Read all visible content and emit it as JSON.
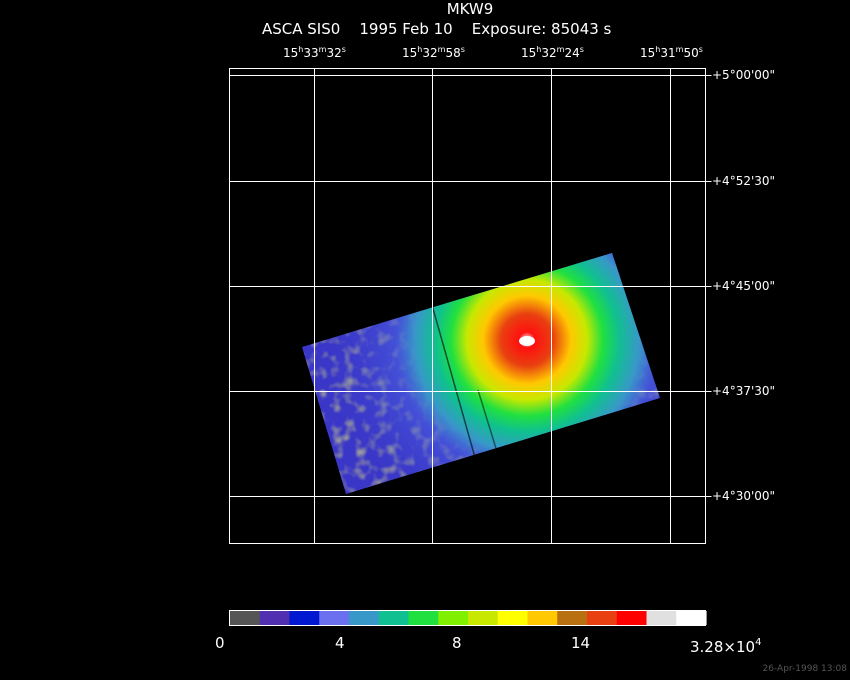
{
  "header": {
    "title": "MKW9",
    "subtitle": "ASCA SIS0    1995 Feb 10    Exposure: 85043 s"
  },
  "ra_axis": {
    "labels": [
      {
        "h": "15",
        "m": "33",
        "s": "32"
      },
      {
        "h": "15",
        "m": "32",
        "s": "58"
      },
      {
        "h": "15",
        "m": "32",
        "s": "24"
      },
      {
        "h": "15",
        "m": "31",
        "s": "50"
      }
    ]
  },
  "dec_axis": {
    "labels": [
      "+5°00'00\"",
      "+4°52'30\"",
      "+4°45'00\"",
      "+4°37'30\"",
      "+4°30'00\""
    ]
  },
  "colorbar": {
    "labels": [
      "0",
      "4",
      "8",
      "14"
    ],
    "max_label_base": "3.28×10",
    "max_label_exp": "4",
    "colors": [
      "#555555",
      "#5030b0",
      "#0018d0",
      "#6a70f0",
      "#3898c8",
      "#10c090",
      "#20e040",
      "#80f000",
      "#c8e800",
      "#ffff00",
      "#ffc800",
      "#b87010",
      "#e84010",
      "#ff0000",
      "#e0e0e0",
      "#ffffff"
    ]
  },
  "footer": {
    "timestamp": "26-Apr-1998 13:08"
  }
}
